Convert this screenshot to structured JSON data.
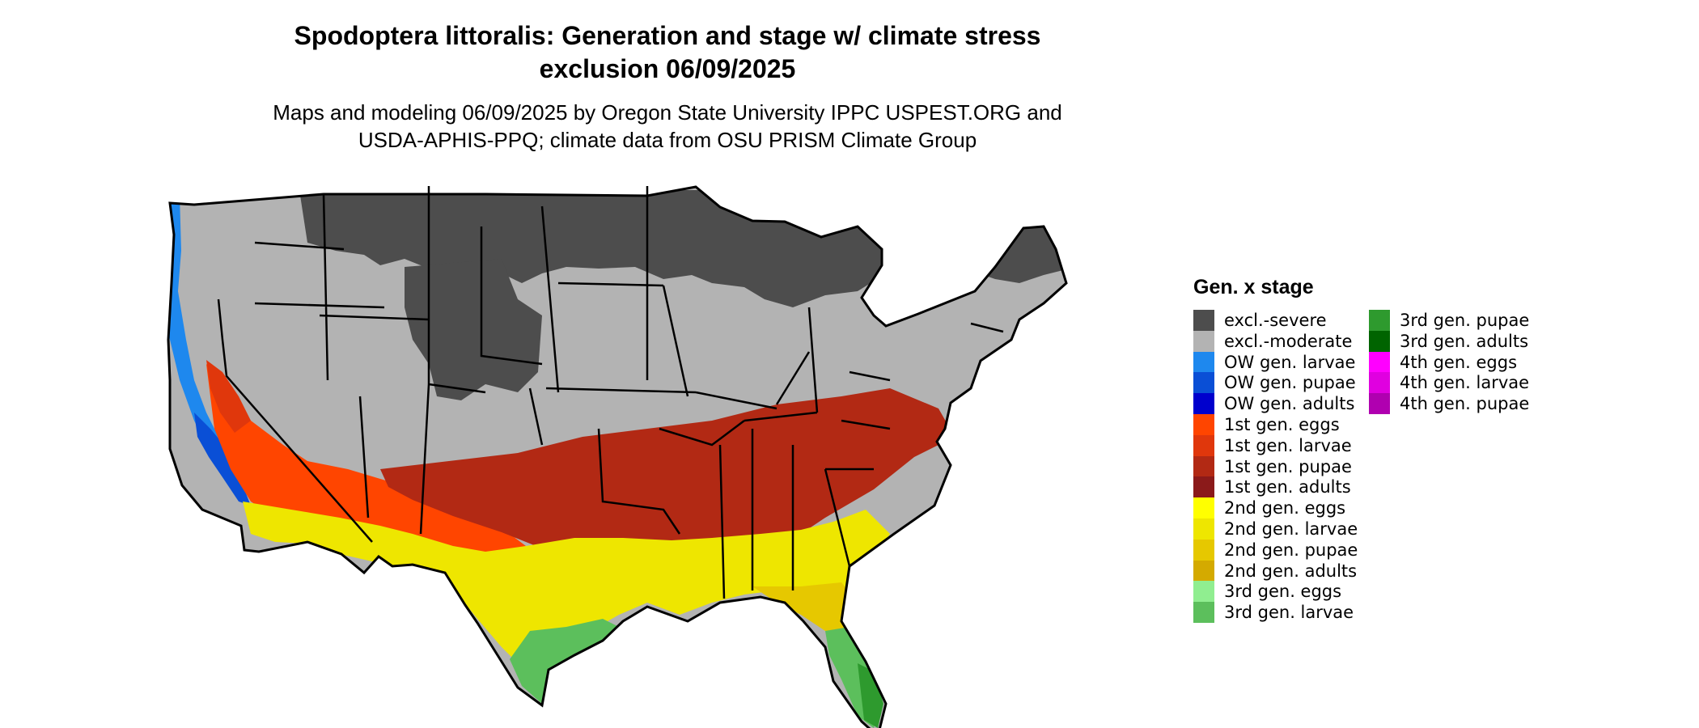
{
  "title": {
    "line1": "Spodoptera littoralis: Generation and stage w/ climate stress",
    "line2": "exclusion 06/09/2025"
  },
  "subtitle": {
    "line1": "Maps and modeling 06/09/2025 by Oregon State University IPPC USPEST.ORG and",
    "line2": "USDA-APHIS-PPQ; climate data from OSU PRISM Climate Group"
  },
  "map": {
    "region": "contiguous-united-states",
    "border_color": "#000000"
  },
  "legend": {
    "title": "Gen. x stage",
    "items": [
      {
        "label": "excl.-severe",
        "color": "#4d4d4d"
      },
      {
        "label": "excl.-moderate",
        "color": "#b3b3b3"
      },
      {
        "label": "OW gen. larvae",
        "color": "#1e88ee"
      },
      {
        "label": "OW gen. pupae",
        "color": "#0a4fd6"
      },
      {
        "label": "OW gen. adults",
        "color": "#0000cd"
      },
      {
        "label": "1st gen. eggs",
        "color": "#ff4500"
      },
      {
        "label": "1st gen. larvae",
        "color": "#e0370c"
      },
      {
        "label": "1st gen. pupae",
        "color": "#b22914"
      },
      {
        "label": "1st gen. adults",
        "color": "#8b1a1a"
      },
      {
        "label": "2nd gen. eggs",
        "color": "#ffff00"
      },
      {
        "label": "2nd gen. larvae",
        "color": "#eee600"
      },
      {
        "label": "2nd gen. pupae",
        "color": "#e6c800"
      },
      {
        "label": "2nd gen. adults",
        "color": "#d4aa00"
      },
      {
        "label": "3rd gen. eggs",
        "color": "#90ee90"
      },
      {
        "label": "3rd gen. larvae",
        "color": "#5cbf5c"
      },
      {
        "label": "3rd gen. pupae",
        "color": "#2e9a2e"
      },
      {
        "label": "3rd gen. adults",
        "color": "#006400"
      },
      {
        "label": "4th gen. eggs",
        "color": "#ff00ff"
      },
      {
        "label": "4th gen. larvae",
        "color": "#e000e0"
      },
      {
        "label": "4th gen. pupae",
        "color": "#b000b0"
      }
    ]
  }
}
